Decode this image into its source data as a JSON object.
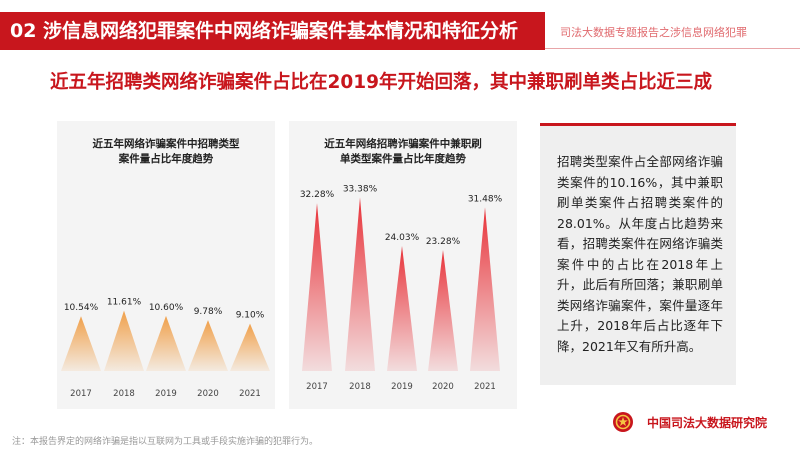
{
  "header": {
    "title": "02  涉信息网络犯罪案件中网络诈骗案件基本情况和特征分析",
    "subtitle": "司法大数据专题报告之涉信息网络犯罪"
  },
  "headline": "近五年招聘类网络诈骗案件占比在2019年开始回落，其中兼职刷单类占比近三成",
  "sidebar": {
    "text": "招聘类型案件占全部网络诈骗类案件的10.16%，其中兼职刷单类案件占招聘类案件的28.01%。从年度占比趋势来看，招聘类案件在网络诈骗类案件中的占比在2018年上升，此后有所回落；兼职刷单类网络诈骗案件，案件量逐年上升，2018年后占比逐年下降，2021年又有所升高。"
  },
  "footer": {
    "org": "中国司法大数据研究院",
    "note": "注：本报告界定的网络诈骗是指以互联网为工具或手段实施诈骗的犯罪行为。"
  },
  "colors": {
    "accent": "#c8161d",
    "bar_left": "#f0a04b",
    "bar_right": "#e8333a"
  },
  "chart_data": [
    {
      "type": "bar",
      "title": "近五年网络诈骗案件中招聘类型\n案件量占比年度趋势",
      "categories": [
        "2017",
        "2018",
        "2019",
        "2020",
        "2021"
      ],
      "values": [
        10.54,
        11.61,
        10.6,
        9.78,
        9.1
      ],
      "value_labels": [
        "10.54%",
        "11.61%",
        "10.60%",
        "9.78%",
        "9.10%"
      ],
      "ylim": [
        0,
        40
      ],
      "xlabel": "",
      "ylabel": "",
      "grid": false,
      "mark_shape": "triangle",
      "color": "#f0a04b"
    },
    {
      "type": "bar",
      "title": "近五年网络招聘诈骗案件中兼职刷\n单类型案件量占比年度趋势",
      "categories": [
        "2017",
        "2018",
        "2019",
        "2020",
        "2021"
      ],
      "values": [
        32.28,
        33.38,
        24.03,
        23.28,
        31.48
      ],
      "value_labels": [
        "32.28%",
        "33.38%",
        "24.03%",
        "23.28%",
        "31.48%"
      ],
      "ylim": [
        0,
        40
      ],
      "xlabel": "",
      "ylabel": "",
      "grid": false,
      "mark_shape": "triangle",
      "color": "#e8333a"
    }
  ]
}
